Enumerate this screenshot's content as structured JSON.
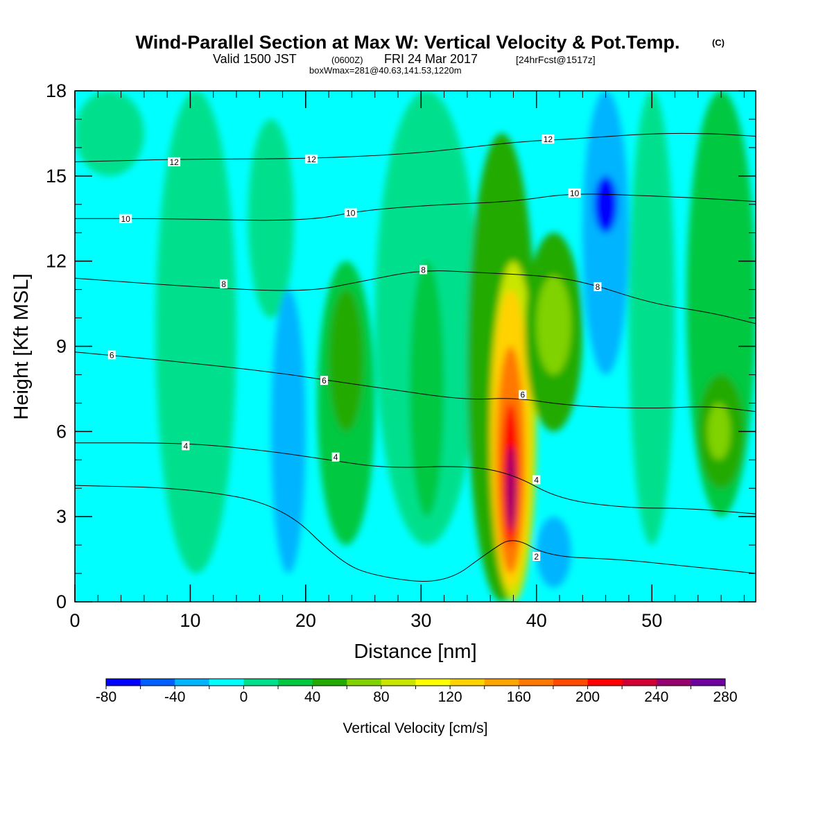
{
  "title": {
    "main": "Wind-Parallel Section at Max W: Vertical Velocity & Pot.Temp.",
    "copyright": "(C)",
    "valid_prefix": "Valid 1500 JST",
    "valid_utc": "(0600Z)",
    "valid_date": "FRI 24 Mar 2017",
    "forecast": "[24hrFcst@1517z]",
    "boxinfo": "boxWmax=281@40.63,141.53,1220m"
  },
  "chart_data": {
    "type": "heatmap",
    "xlabel": "Distance [nm]",
    "ylabel": "Height [Kft MSL]",
    "xlim": [
      0,
      59
    ],
    "ylim": [
      0,
      18
    ],
    "xticks": [
      "0",
      "10",
      "20",
      "30",
      "40",
      "50"
    ],
    "yticks": [
      "0",
      "3",
      "6",
      "9",
      "12",
      "15",
      "18"
    ],
    "colorbar": {
      "title": "Vertical Velocity [cm/s]",
      "labels": [
        "-80",
        "-40",
        "0",
        "40",
        "80",
        "120",
        "160",
        "200",
        "240",
        "280"
      ],
      "min": -80,
      "max": 280,
      "step": 20,
      "colors": [
        "#0000ff",
        "#0060ff",
        "#00b4ff",
        "#00ffff",
        "#00e08c",
        "#00c840",
        "#22aa00",
        "#80d200",
        "#c8e600",
        "#ffff00",
        "#ffd200",
        "#ffa500",
        "#ff7800",
        "#ff4b00",
        "#ff0000",
        "#d20032",
        "#96006e",
        "#6e00a0"
      ]
    },
    "background_color": "#00ffff",
    "cells": [
      {
        "x": [
          0,
          6
        ],
        "y": [
          15,
          18
        ],
        "v": 10
      },
      {
        "x": [
          7,
          14
        ],
        "y": [
          1,
          18
        ],
        "v": 10
      },
      {
        "x": [
          15,
          19
        ],
        "y": [
          10,
          17
        ],
        "v": 0
      },
      {
        "x": [
          17,
          20
        ],
        "y": [
          1,
          11
        ],
        "v": -30
      },
      {
        "x": [
          21,
          26
        ],
        "y": [
          2,
          12
        ],
        "v": 30
      },
      {
        "x": [
          22,
          25
        ],
        "y": [
          6,
          11
        ],
        "v": 50
      },
      {
        "x": [
          26,
          35
        ],
        "y": [
          2,
          18
        ],
        "v": 10
      },
      {
        "x": [
          29,
          32
        ],
        "y": [
          3,
          12
        ],
        "v": 30
      },
      {
        "x": [
          34,
          40
        ],
        "y": [
          0,
          16.5
        ],
        "v": 50
      },
      {
        "x": [
          36,
          40
        ],
        "y": [
          0,
          12
        ],
        "v": 90
      },
      {
        "x": [
          36,
          39.5
        ],
        "y": [
          0.5,
          11
        ],
        "v": 130
      },
      {
        "x": [
          36.5,
          39
        ],
        "y": [
          1,
          9
        ],
        "v": 170
      },
      {
        "x": [
          37,
          38.5
        ],
        "y": [
          2,
          7
        ],
        "v": 210
      },
      {
        "x": [
          37.4,
          38.2
        ],
        "y": [
          2.5,
          5.5
        ],
        "v": 250
      },
      {
        "x": [
          39,
          44
        ],
        "y": [
          6,
          13
        ],
        "v": 50
      },
      {
        "x": [
          40,
          43
        ],
        "y": [
          8,
          11.5
        ],
        "v": 70
      },
      {
        "x": [
          40,
          43
        ],
        "y": [
          0.5,
          3
        ],
        "v": -30
      },
      {
        "x": [
          44,
          48
        ],
        "y": [
          8,
          18
        ],
        "v": -30
      },
      {
        "x": [
          45,
          47
        ],
        "y": [
          13,
          15
        ],
        "v": -70
      },
      {
        "x": [
          48,
          52
        ],
        "y": [
          2,
          18
        ],
        "v": 10
      },
      {
        "x": [
          53,
          59
        ],
        "y": [
          3,
          18
        ],
        "v": 30
      },
      {
        "x": [
          54,
          58
        ],
        "y": [
          4,
          8
        ],
        "v": 50
      },
      {
        "x": [
          54.8,
          56.8
        ],
        "y": [
          5,
          7
        ],
        "v": 70
      }
    ],
    "contours": [
      {
        "level": 2,
        "label": "2",
        "points": [
          [
            0,
            4.1
          ],
          [
            10,
            4
          ],
          [
            18,
            3.4
          ],
          [
            23,
            1.4
          ],
          [
            26,
            0.9
          ],
          [
            32,
            0.6
          ],
          [
            36,
            1.8
          ],
          [
            38,
            2.3
          ],
          [
            41,
            1.6
          ],
          [
            47,
            1.5
          ],
          [
            52,
            1.3
          ],
          [
            59,
            1
          ]
        ]
      },
      {
        "level": 4,
        "label": "4",
        "points": [
          [
            0,
            5.6
          ],
          [
            10,
            5.6
          ],
          [
            17,
            5.3
          ],
          [
            22,
            5
          ],
          [
            27,
            4.7
          ],
          [
            34,
            4.8
          ],
          [
            38,
            4.5
          ],
          [
            42,
            3.6
          ],
          [
            48,
            3.3
          ],
          [
            53,
            3.3
          ],
          [
            59,
            3.1
          ]
        ]
      },
      {
        "level": 6,
        "label": "6",
        "points": [
          [
            0,
            8.8
          ],
          [
            8,
            8.5
          ],
          [
            17,
            8.1
          ],
          [
            22,
            7.8
          ],
          [
            27,
            7.5
          ],
          [
            34,
            7.1
          ],
          [
            38,
            7.2
          ],
          [
            43,
            6.9
          ],
          [
            50,
            6.8
          ],
          [
            55,
            6.9
          ],
          [
            59,
            6.7
          ]
        ]
      },
      {
        "level": 8,
        "label": "8",
        "points": [
          [
            0,
            11.4
          ],
          [
            10,
            11.1
          ],
          [
            20,
            10.9
          ],
          [
            25,
            11.3
          ],
          [
            30,
            11.7
          ],
          [
            35,
            11.6
          ],
          [
            40,
            11.5
          ],
          [
            44,
            11.3
          ],
          [
            50,
            10.5
          ],
          [
            55,
            10.2
          ],
          [
            59,
            9.8
          ]
        ]
      },
      {
        "level": 10,
        "label": "10",
        "points": [
          [
            0,
            13.5
          ],
          [
            8,
            13.5
          ],
          [
            20,
            13.4
          ],
          [
            25,
            13.8
          ],
          [
            32,
            14
          ],
          [
            38,
            14.1
          ],
          [
            43,
            14.4
          ],
          [
            50,
            14.3
          ],
          [
            55,
            14.2
          ],
          [
            59,
            14.1
          ]
        ]
      },
      {
        "level": 12,
        "label": "12",
        "points": [
          [
            0,
            15.5
          ],
          [
            10,
            15.6
          ],
          [
            20,
            15.6
          ],
          [
            30,
            15.8
          ],
          [
            38,
            16.2
          ],
          [
            43,
            16.3
          ],
          [
            50,
            16.5
          ],
          [
            55,
            16.5
          ],
          [
            59,
            16.4
          ]
        ]
      }
    ],
    "contour_labels": [
      {
        "text": "12",
        "x": 8.6,
        "y": 15.5
      },
      {
        "text": "12",
        "x": 20.5,
        "y": 15.6
      },
      {
        "text": "12",
        "x": 41,
        "y": 16.3
      },
      {
        "text": "10",
        "x": 4.4,
        "y": 13.5
      },
      {
        "text": "10",
        "x": 23.9,
        "y": 13.7
      },
      {
        "text": "10",
        "x": 43.3,
        "y": 14.4
      },
      {
        "text": "8",
        "x": 12.9,
        "y": 11.2
      },
      {
        "text": "8",
        "x": 30.2,
        "y": 11.7
      },
      {
        "text": "8",
        "x": 45.3,
        "y": 11.1
      },
      {
        "text": "6",
        "x": 3.2,
        "y": 8.7
      },
      {
        "text": "6",
        "x": 21.6,
        "y": 7.8
      },
      {
        "text": "6",
        "x": 38.8,
        "y": 7.3
      },
      {
        "text": "4",
        "x": 9.6,
        "y": 5.5
      },
      {
        "text": "4",
        "x": 22.6,
        "y": 5.1
      },
      {
        "text": "4",
        "x": 40,
        "y": 4.3
      },
      {
        "text": "2",
        "x": 40,
        "y": 1.6
      }
    ]
  }
}
